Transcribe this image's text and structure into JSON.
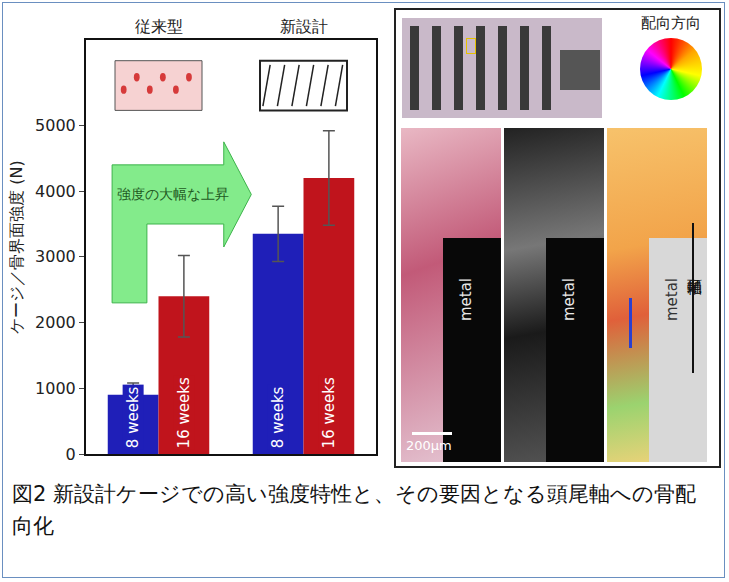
{
  "chart_data": {
    "type": "bar",
    "categories": [
      "従来型",
      "新設計"
    ],
    "series": [
      {
        "name": "8 weeks",
        "color": "#1f1fb8",
        "values": [
          900,
          3350
        ],
        "errors": [
          180,
          420
        ]
      },
      {
        "name": "16 weeks",
        "color": "#c0141c",
        "values": [
          2400,
          4200
        ],
        "errors": [
          620,
          720
        ]
      }
    ],
    "y_label": "ケージ／骨界面強度 (N)",
    "ylim": [
      0,
      6300
    ],
    "yticks": [
      0,
      1000,
      2000,
      3000,
      4000,
      5000
    ],
    "grid": false,
    "annotations": [
      "強度の大幅な上昇"
    ]
  },
  "figure": {
    "caption": "図2 新設計ケージでの高い強度特性と、その要因となる頭尾軸への骨配向化"
  },
  "images": {
    "orientation_legend": "配向方向",
    "metal_labels": [
      "metal",
      "metal",
      "metal"
    ],
    "scale_bar": "200μm",
    "axis_label": "頭尾軸"
  }
}
